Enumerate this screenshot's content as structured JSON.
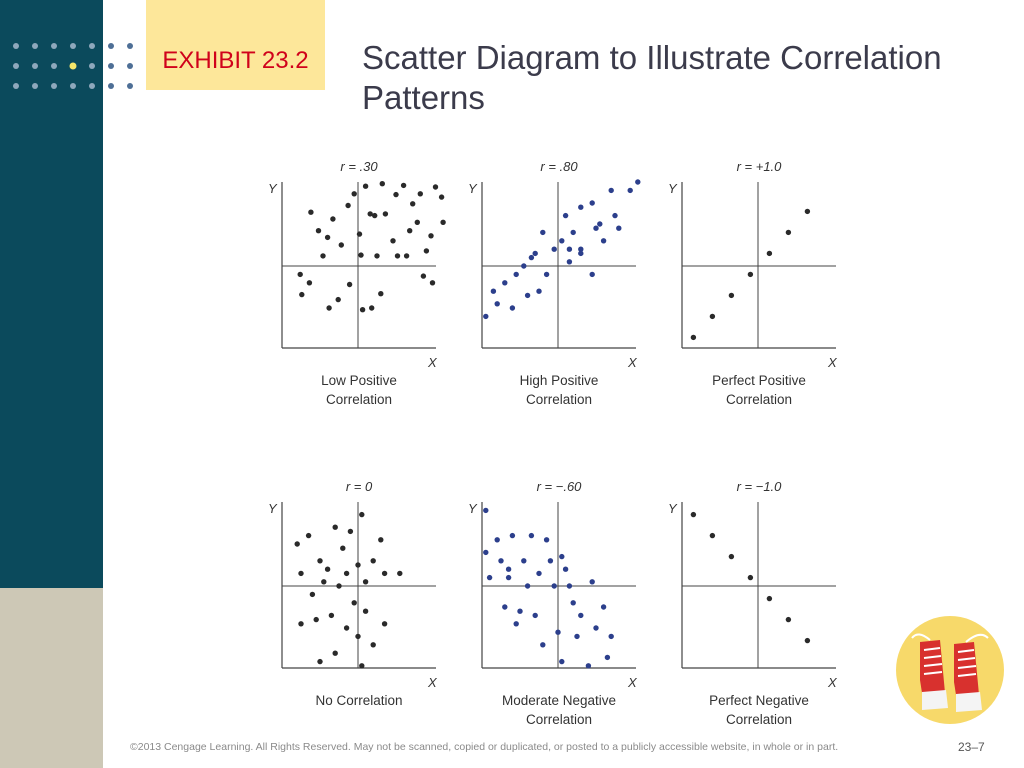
{
  "exhibit": {
    "label": "EXHIBIT 23.2"
  },
  "title": "Scatter Diagram to Illustrate Correlation Patterns",
  "colors": {
    "sidebar": "#0b4a5c",
    "sidebar_lower": "#cdc8b6",
    "exhibit_bg": "#fde79a",
    "exhibit_text": "#d0021b",
    "black_points": "#2a2a2a",
    "blue_points": "#2c3f8c"
  },
  "panels": [
    {
      "r_label": "r = .30",
      "y_axis": "Y",
      "x_axis": "X",
      "caption": [
        "Low Positive",
        "Correlation"
      ],
      "point_color": "black",
      "points": [
        [
          -0.74,
          -0.34
        ],
        [
          -0.62,
          0.64
        ],
        [
          -0.52,
          0.42
        ],
        [
          -0.46,
          0.12
        ],
        [
          -0.4,
          0.34
        ],
        [
          -0.33,
          0.56
        ],
        [
          -0.26,
          -0.4
        ],
        [
          -0.22,
          0.25
        ],
        [
          -0.13,
          0.72
        ],
        [
          -0.11,
          -0.22
        ],
        [
          -0.05,
          0.86
        ],
        [
          0.02,
          0.38
        ],
        [
          0.04,
          0.13
        ],
        [
          0.06,
          -0.52
        ],
        [
          0.1,
          0.95
        ],
        [
          0.16,
          0.62
        ],
        [
          0.22,
          0.6
        ],
        [
          0.25,
          0.12
        ],
        [
          0.3,
          -0.33
        ],
        [
          0.32,
          0.98
        ],
        [
          0.36,
          0.62
        ],
        [
          0.46,
          0.3
        ],
        [
          0.5,
          0.85
        ],
        [
          0.52,
          0.12
        ],
        [
          0.6,
          0.96
        ],
        [
          0.64,
          0.12
        ],
        [
          0.68,
          0.42
        ],
        [
          0.72,
          0.74
        ],
        [
          0.78,
          0.52
        ],
        [
          0.82,
          0.86
        ],
        [
          0.86,
          -0.12
        ],
        [
          0.9,
          0.18
        ],
        [
          0.96,
          0.36
        ],
        [
          1.02,
          0.94
        ],
        [
          1.1,
          0.82
        ],
        [
          1.12,
          0.52
        ],
        [
          0.98,
          -0.2
        ],
        [
          -0.64,
          -0.2
        ],
        [
          -0.38,
          -0.5
        ],
        [
          -0.76,
          -0.1
        ],
        [
          0.18,
          -0.5
        ]
      ]
    },
    {
      "r_label": "r = .80",
      "y_axis": "Y",
      "x_axis": "X",
      "caption": [
        "High Positive",
        "Correlation"
      ],
      "point_color": "blue",
      "points": [
        [
          -0.95,
          -0.6
        ],
        [
          -0.85,
          -0.3
        ],
        [
          -0.8,
          -0.45
        ],
        [
          -0.7,
          -0.2
        ],
        [
          -0.6,
          -0.5
        ],
        [
          -0.55,
          -0.1
        ],
        [
          -0.4,
          -0.35
        ],
        [
          -0.35,
          0.1
        ],
        [
          -0.3,
          0.15
        ],
        [
          -0.25,
          -0.3
        ],
        [
          -0.2,
          0.4
        ],
        [
          -0.05,
          0.2
        ],
        [
          0.05,
          0.3
        ],
        [
          0.1,
          0.6
        ],
        [
          0.15,
          0.2
        ],
        [
          0.2,
          0.4
        ],
        [
          0.3,
          0.7
        ],
        [
          0.3,
          0.2
        ],
        [
          0.45,
          0.75
        ],
        [
          0.45,
          -0.1
        ],
        [
          0.55,
          0.5
        ],
        [
          0.6,
          0.3
        ],
        [
          0.7,
          0.9
        ],
        [
          0.75,
          0.6
        ],
        [
          0.8,
          0.45
        ],
        [
          0.95,
          0.9
        ],
        [
          1.05,
          1.0
        ],
        [
          -0.15,
          -0.1
        ],
        [
          0.15,
          0.05
        ],
        [
          0.5,
          0.45
        ],
        [
          0.3,
          0.15
        ],
        [
          -0.45,
          0.0
        ]
      ]
    },
    {
      "r_label": "r = +1.0",
      "y_axis": "Y",
      "x_axis": "X",
      "caption": [
        "Perfect Positive",
        "Correlation"
      ],
      "point_color": "black",
      "points": [
        [
          -0.85,
          -0.85
        ],
        [
          -0.6,
          -0.6
        ],
        [
          -0.35,
          -0.35
        ],
        [
          -0.1,
          -0.1
        ],
        [
          0.15,
          0.15
        ],
        [
          0.4,
          0.4
        ],
        [
          0.65,
          0.65
        ]
      ]
    },
    {
      "r_label": "r = 0",
      "y_axis": "Y",
      "x_axis": "X",
      "caption": [
        "No Correlation"
      ],
      "point_color": "black",
      "points": [
        [
          -0.8,
          0.5
        ],
        [
          -0.75,
          0.15
        ],
        [
          -0.75,
          -0.45
        ],
        [
          -0.65,
          0.6
        ],
        [
          -0.6,
          -0.1
        ],
        [
          -0.55,
          -0.4
        ],
        [
          -0.5,
          0.3
        ],
        [
          -0.5,
          -0.9
        ],
        [
          -0.4,
          0.2
        ],
        [
          -0.35,
          -0.35
        ],
        [
          -0.3,
          0.7
        ],
        [
          -0.3,
          -0.8
        ],
        [
          -0.25,
          0.0
        ],
        [
          -0.2,
          0.45
        ],
        [
          -0.15,
          0.15
        ],
        [
          -0.15,
          -0.5
        ],
        [
          -0.1,
          0.65
        ],
        [
          -0.05,
          -0.2
        ],
        [
          0.0,
          0.25
        ],
        [
          0.0,
          -0.6
        ],
        [
          0.05,
          0.85
        ],
        [
          0.1,
          0.05
        ],
        [
          0.1,
          -0.3
        ],
        [
          0.2,
          0.3
        ],
        [
          0.2,
          -0.7
        ],
        [
          0.3,
          0.55
        ],
        [
          0.35,
          0.15
        ],
        [
          0.35,
          -0.45
        ],
        [
          0.55,
          0.15
        ],
        [
          -0.45,
          0.05
        ],
        [
          0.05,
          -0.95
        ]
      ]
    },
    {
      "r_label": "r = −.60",
      "y_axis": "Y",
      "x_axis": "X",
      "caption": [
        "Moderate Negative",
        "Correlation"
      ],
      "point_color": "blue",
      "points": [
        [
          -0.95,
          0.9
        ],
        [
          -0.95,
          0.4
        ],
        [
          -0.9,
          0.1
        ],
        [
          -0.8,
          0.55
        ],
        [
          -0.75,
          0.3
        ],
        [
          -0.7,
          -0.25
        ],
        [
          -0.65,
          0.1
        ],
        [
          -0.6,
          0.6
        ],
        [
          -0.55,
          -0.45
        ],
        [
          -0.5,
          -0.3
        ],
        [
          -0.45,
          0.3
        ],
        [
          -0.4,
          0.0
        ],
        [
          -0.35,
          0.6
        ],
        [
          -0.3,
          -0.35
        ],
        [
          -0.25,
          0.15
        ],
        [
          -0.2,
          -0.7
        ],
        [
          -0.15,
          0.55
        ],
        [
          -0.1,
          0.3
        ],
        [
          -0.05,
          0.0
        ],
        [
          0.0,
          -0.55
        ],
        [
          0.05,
          0.35
        ],
        [
          0.05,
          -0.9
        ],
        [
          0.15,
          0.0
        ],
        [
          0.2,
          -0.2
        ],
        [
          0.25,
          -0.6
        ],
        [
          0.3,
          -0.35
        ],
        [
          0.4,
          -0.95
        ],
        [
          0.45,
          0.05
        ],
        [
          0.5,
          -0.5
        ],
        [
          0.6,
          -0.25
        ],
        [
          0.65,
          -0.85
        ],
        [
          0.7,
          -0.6
        ],
        [
          -0.65,
          0.2
        ],
        [
          0.1,
          0.2
        ]
      ]
    },
    {
      "r_label": "r = −1.0",
      "y_axis": "Y",
      "x_axis": "X",
      "caption": [
        "Perfect Negative",
        "Correlation"
      ],
      "point_color": "black",
      "points": [
        [
          -0.85,
          0.85
        ],
        [
          -0.6,
          0.6
        ],
        [
          -0.35,
          0.35
        ],
        [
          -0.1,
          0.1
        ],
        [
          0.15,
          -0.15
        ],
        [
          0.4,
          -0.4
        ],
        [
          0.65,
          -0.65
        ]
      ]
    }
  ],
  "footer": "©2013 Cengage Learning. All Rights Reserved. May not be scanned, copied or duplicated, or posted to a publicly accessible website, in whole or in part.",
  "slide_number": "23–7"
}
